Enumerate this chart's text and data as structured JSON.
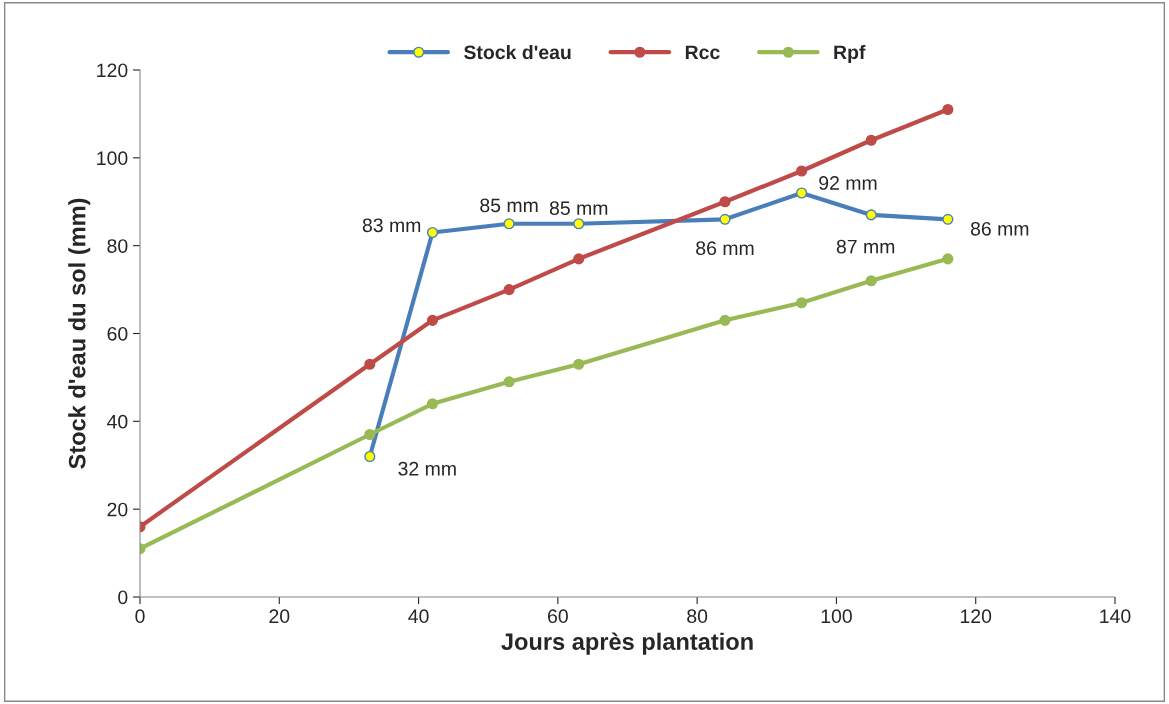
{
  "chart_data": {
    "type": "line",
    "xlabel": "Jours après plantation",
    "ylabel": "Stock d'eau du sol (mm)",
    "xlim": [
      0,
      140
    ],
    "xticks": [
      0,
      20,
      40,
      60,
      80,
      100,
      120,
      140
    ],
    "ylim": [
      0,
      120
    ],
    "yticks": [
      0,
      20,
      40,
      60,
      80,
      100,
      120
    ],
    "grid": false,
    "legend": "top",
    "marker": "circle",
    "line_style": "solid",
    "series": [
      {
        "name": "Stock d'eau",
        "color": "#4a7ebb",
        "x": [
          33,
          42,
          53,
          63,
          84,
          95,
          105,
          116
        ],
        "values": [
          32,
          83,
          85,
          85,
          86,
          92,
          87,
          86
        ],
        "value_labels": [
          "32 mm",
          "83 mm",
          "85 mm",
          "85 mm",
          "86 mm",
          "92 mm",
          "87 mm",
          "86 mm"
        ]
      },
      {
        "name": "Rcc",
        "color": "#be4b48",
        "x": [
          0,
          33,
          42,
          53,
          63,
          84,
          95,
          105,
          116
        ],
        "values": [
          16,
          53,
          63,
          70,
          77,
          90,
          97,
          104,
          111
        ]
      },
      {
        "name": "Rpf",
        "color": "#98b954",
        "x": [
          0,
          33,
          42,
          53,
          63,
          84,
          95,
          105,
          116
        ],
        "values": [
          11,
          37,
          44,
          49,
          53,
          63,
          67,
          72,
          77
        ]
      }
    ]
  }
}
